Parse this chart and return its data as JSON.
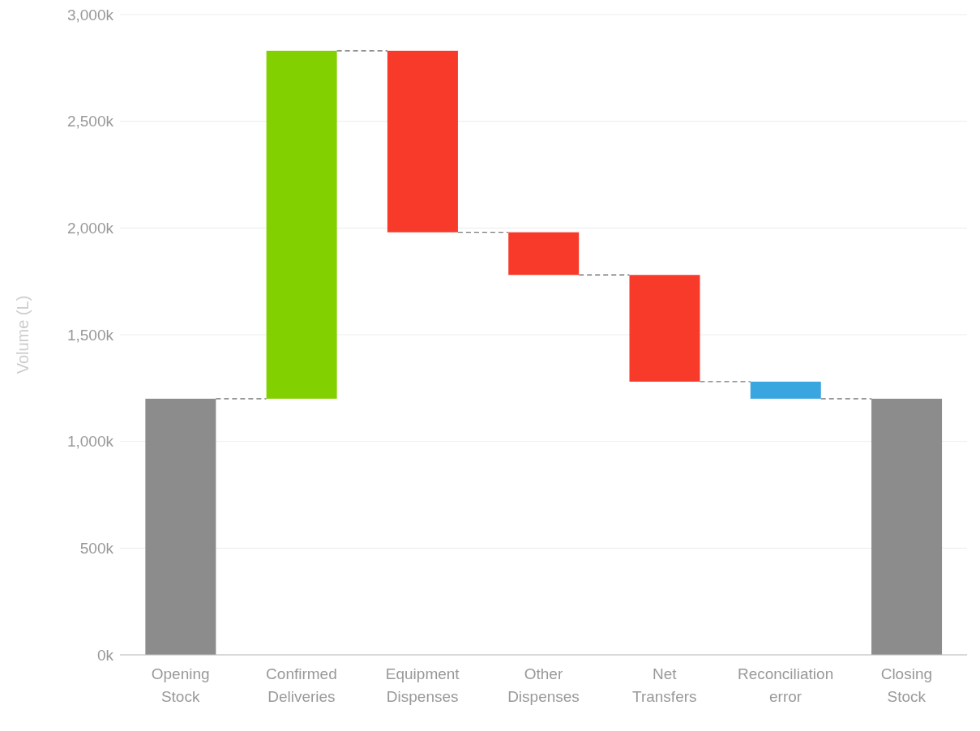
{
  "chart_data": {
    "type": "bar",
    "ylabel": "Volume (L)",
    "categories": [
      "Opening Stock",
      "Confirmed Deliveries",
      "Equipment Dispenses",
      "Other Dispenses",
      "Net Transfers",
      "Reconciliation error",
      "Closing Stock"
    ],
    "base": [
      0,
      1200,
      2830,
      1980,
      1780,
      1280,
      0
    ],
    "values": [
      1200,
      1630,
      -850,
      -200,
      -500,
      -80,
      1200
    ],
    "colors": [
      "#8c8c8c",
      "#83d000",
      "#f73a2a",
      "#f73a2a",
      "#f73a2a",
      "#3aa6e0",
      "#8c8c8c"
    ],
    "ylim": [
      0,
      3000
    ],
    "yticks": [
      {
        "value": 0,
        "label": "0k"
      },
      {
        "value": 500,
        "label": "500k"
      },
      {
        "value": 1000,
        "label": "1,000k"
      },
      {
        "value": 1500,
        "label": "1,500k"
      },
      {
        "value": 2000,
        "label": "2,000k"
      },
      {
        "value": 2500,
        "label": "2,500k"
      },
      {
        "value": 3000,
        "label": "3,000k"
      }
    ],
    "grid": "y"
  }
}
